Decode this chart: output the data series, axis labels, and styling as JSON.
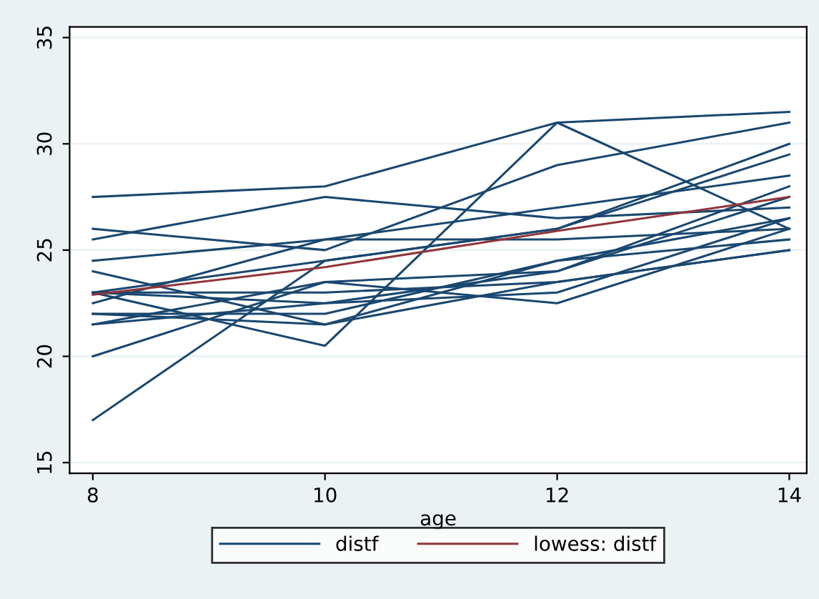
{
  "chart_data": {
    "type": "line",
    "xlabel": "age",
    "x": [
      8,
      10,
      12,
      14
    ],
    "series": [
      {
        "name": "distf",
        "color": "#1a476f",
        "values": [
          26,
          25,
          29,
          31
        ]
      },
      {
        "color": "#1a476f",
        "values": [
          21.5,
          22.5,
          23,
          26.5
        ]
      },
      {
        "color": "#1a476f",
        "values": [
          23,
          22.5,
          24,
          27.5
        ]
      },
      {
        "color": "#1a476f",
        "values": [
          25.5,
          27.5,
          26.5,
          27
        ]
      },
      {
        "color": "#1a476f",
        "values": [
          20,
          23.5,
          22.5,
          26
        ]
      },
      {
        "color": "#1a476f",
        "values": [
          24.5,
          25.5,
          27,
          28.5
        ]
      },
      {
        "color": "#1a476f",
        "values": [
          22,
          22,
          24.5,
          26.5
        ]
      },
      {
        "color": "#1a476f",
        "values": [
          24,
          21.5,
          24.5,
          25.5
        ]
      },
      {
        "color": "#1a476f",
        "values": [
          23,
          20.5,
          31,
          26
        ]
      },
      {
        "color": "#1a476f",
        "values": [
          27.5,
          28,
          31,
          31.5
        ]
      },
      {
        "color": "#1a476f",
        "values": [
          23,
          23,
          23.5,
          25
        ]
      },
      {
        "color": "#1a476f",
        "values": [
          21.5,
          23.5,
          24,
          28
        ]
      },
      {
        "color": "#1a476f",
        "values": [
          17,
          24.5,
          26,
          29.5
        ]
      },
      {
        "color": "#1a476f",
        "values": [
          22.5,
          25.5,
          25.5,
          26
        ]
      },
      {
        "color": "#1a476f",
        "values": [
          23,
          24.5,
          26,
          30
        ]
      },
      {
        "color": "#1a476f",
        "values": [
          22,
          21.5,
          23.5,
          25
        ]
      },
      {
        "name": "lowess: distf",
        "color": "#90353b",
        "values": [
          22.9,
          24.2,
          25.9,
          27.5
        ]
      }
    ],
    "xlim": [
      7.8,
      14.15
    ],
    "xticks": [
      8,
      10,
      12,
      14
    ],
    "ylim": [
      14.5,
      35.5
    ],
    "yticks": [
      15,
      20,
      25,
      30,
      35
    ],
    "grid": "y",
    "legend": "bottom"
  }
}
